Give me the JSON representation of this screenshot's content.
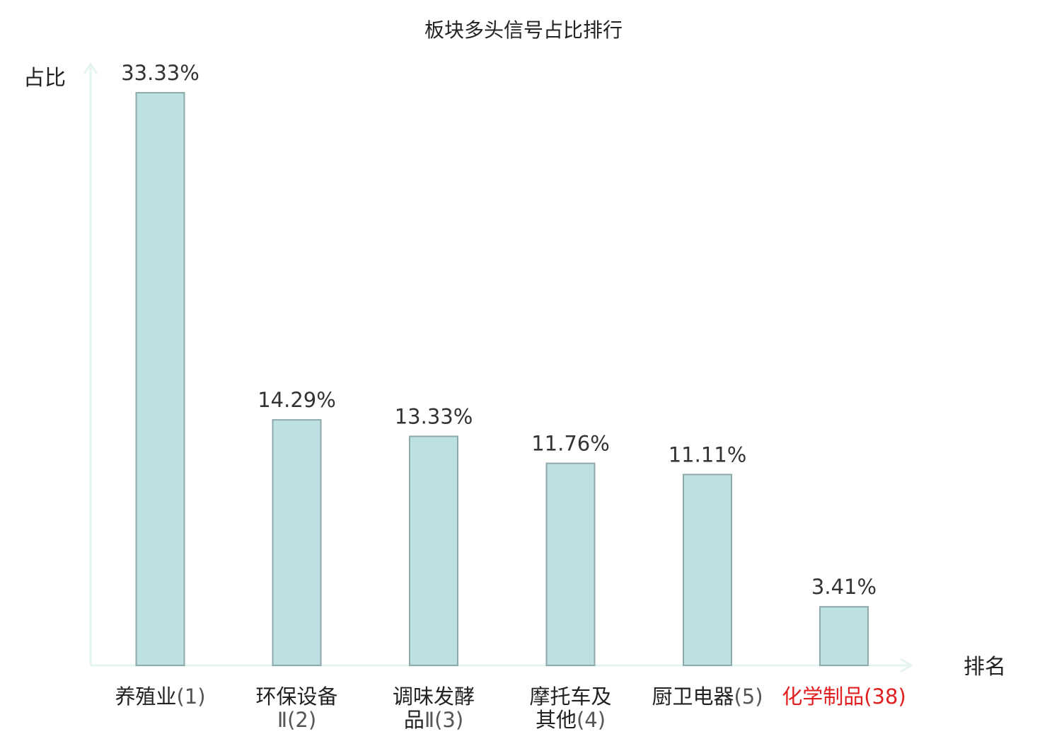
{
  "chart_data": {
    "type": "bar",
    "title": "板块多头信号占比排行",
    "xlabel": "排名",
    "ylabel": "占比",
    "ylim": [
      0,
      35
    ],
    "grid": false,
    "legend": "none",
    "categories": [
      {
        "lines": [
          [
            {
              "text": "养殖业"
            },
            {
              "text": "(1)",
              "muted": true
            }
          ]
        ]
      },
      {
        "lines": [
          [
            {
              "text": "环保设备"
            }
          ],
          [
            {
              "text": "Ⅱ(2)",
              "muted": true
            }
          ]
        ]
      },
      {
        "lines": [
          [
            {
              "text": "调味发酵"
            }
          ],
          [
            {
              "text": "品"
            },
            {
              "text": "Ⅱ(3)",
              "muted": true
            }
          ]
        ]
      },
      {
        "lines": [
          [
            {
              "text": "摩托车及"
            }
          ],
          [
            {
              "text": "其他"
            },
            {
              "text": "(4)",
              "muted": true
            }
          ]
        ]
      },
      {
        "lines": [
          [
            {
              "text": "厨卫电器"
            },
            {
              "text": "(5)",
              "muted": true
            }
          ]
        ]
      },
      {
        "lines": [
          [
            {
              "text": "化学制品(38)",
              "highlight": true
            }
          ]
        ]
      }
    ],
    "values": [
      33.33,
      14.29,
      13.33,
      11.76,
      11.11,
      3.41
    ],
    "value_labels": [
      "33.33%",
      "14.29%",
      "13.33%",
      "11.76%",
      "11.11%",
      "3.41%"
    ]
  },
  "colors": {
    "bar_fill": "#bde0e3",
    "bar_stroke": "#8fa9ab",
    "axis": "#e3f4f1",
    "text": "#222222",
    "value_text": "#333333",
    "muted_text": "#555555",
    "highlight_text": "#e02020"
  }
}
